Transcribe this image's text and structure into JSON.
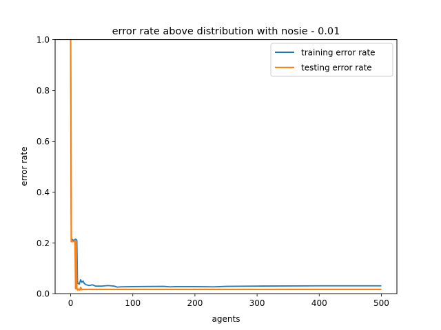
{
  "chart_data": {
    "type": "line",
    "title": "error rate above distribution with nosie - 0.01",
    "xlabel": "agents",
    "ylabel": "error rate",
    "xlim": [
      -25,
      525
    ],
    "ylim": [
      0,
      1.0
    ],
    "xticks": [
      0,
      100,
      200,
      300,
      400,
      500
    ],
    "yticks": [
      0.0,
      0.2,
      0.4,
      0.6,
      0.8,
      1.0
    ],
    "grid": false,
    "legend": "top-right",
    "series": [
      {
        "name": "training error rate",
        "color": "#1f77b4",
        "x": [
          0,
          1,
          2,
          3,
          4,
          6,
          8,
          10,
          11,
          12,
          14,
          16,
          18,
          20,
          22,
          25,
          30,
          35,
          40,
          50,
          60,
          70,
          75,
          80,
          100,
          150,
          160,
          170,
          200,
          230,
          250,
          300,
          400,
          500
        ],
        "y": [
          1.0,
          0.21,
          0.215,
          0.212,
          0.21,
          0.212,
          0.215,
          0.21,
          0.05,
          0.04,
          0.038,
          0.055,
          0.045,
          0.05,
          0.04,
          0.035,
          0.032,
          0.035,
          0.03,
          0.03,
          0.032,
          0.03,
          0.026,
          0.027,
          0.028,
          0.029,
          0.027,
          0.028,
          0.028,
          0.027,
          0.029,
          0.03,
          0.031,
          0.031
        ]
      },
      {
        "name": "testing error rate",
        "color": "#ff7f0e",
        "x": [
          0,
          1,
          2,
          4,
          6,
          7,
          8,
          9,
          10,
          11,
          12,
          14,
          15,
          16,
          17,
          18,
          20,
          30,
          50,
          100,
          200,
          300,
          400,
          500
        ],
        "y": [
          1.0,
          0.205,
          0.205,
          0.205,
          0.205,
          0.21,
          0.02,
          0.2,
          0.02,
          0.015,
          0.018,
          0.015,
          0.015,
          0.025,
          0.02,
          0.016,
          0.017,
          0.017,
          0.017,
          0.017,
          0.017,
          0.017,
          0.017,
          0.017
        ]
      }
    ]
  }
}
